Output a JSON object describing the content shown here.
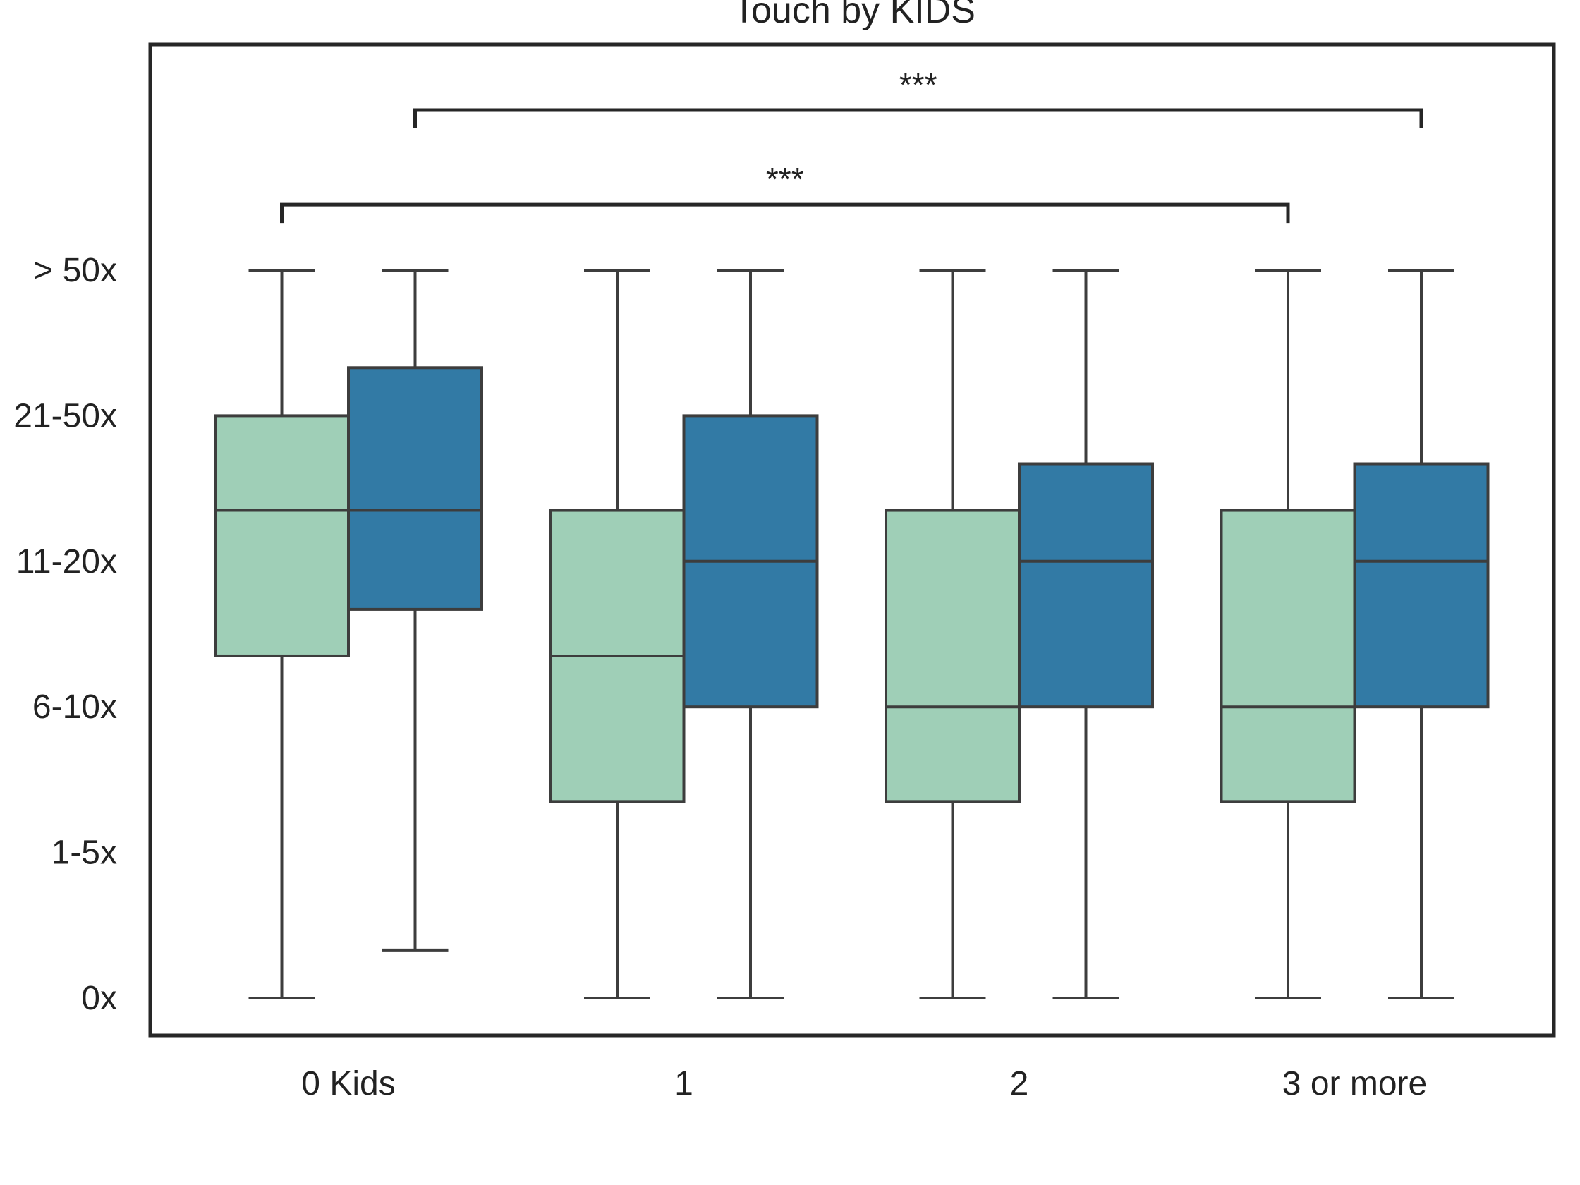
{
  "chart_data": {
    "type": "box",
    "title": "Touch by KIDS",
    "xlabel": "",
    "ylabel": "",
    "categories": [
      "0 Kids",
      "1",
      "2",
      "3 or more"
    ],
    "y_tick_labels": [
      "0x",
      "1-5x",
      "6-10x",
      "11-20x",
      "21-50x",
      "> 50x"
    ],
    "y_ticks": [
      0,
      1,
      2,
      3,
      4,
      5
    ],
    "ylim": [
      -0.25,
      6.8
    ],
    "grid": false,
    "legend": "none",
    "series": [
      {
        "color": "#9fcfb7",
        "boxes": [
          {
            "whisker_low": 0,
            "q1": 2.35,
            "median": 3.35,
            "q3": 4,
            "whisker_high": 5
          },
          {
            "whisker_low": 0,
            "q1": 1.35,
            "median": 2.35,
            "q3": 3.35,
            "whisker_high": 5
          },
          {
            "whisker_low": 0,
            "q1": 1.35,
            "median": 2,
            "q3": 3.35,
            "whisker_high": 5
          },
          {
            "whisker_low": 0,
            "q1": 1.35,
            "median": 2,
            "q3": 3.35,
            "whisker_high": 5
          }
        ]
      },
      {
        "color": "#327aa5",
        "boxes": [
          {
            "whisker_low": 0.33,
            "q1": 2.67,
            "median": 3.35,
            "q3": 4.33,
            "whisker_high": 5
          },
          {
            "whisker_low": 0,
            "q1": 2,
            "median": 3,
            "q3": 4,
            "whisker_high": 5
          },
          {
            "whisker_low": 0,
            "q1": 2,
            "median": 3,
            "q3": 3.67,
            "whisker_high": 5
          },
          {
            "whisker_low": 0,
            "q1": 2,
            "median": 3,
            "q3": 3.67,
            "whisker_high": 5
          }
        ]
      }
    ],
    "annotations": [
      {
        "text": "***",
        "from_category": 0,
        "from_series": 1,
        "to_category": 3,
        "to_series": 1,
        "y": 6.1
      },
      {
        "text": "***",
        "from_category": 0,
        "from_series": 0,
        "to_category": 3,
        "to_series": 0,
        "y": 5.45
      }
    ]
  }
}
